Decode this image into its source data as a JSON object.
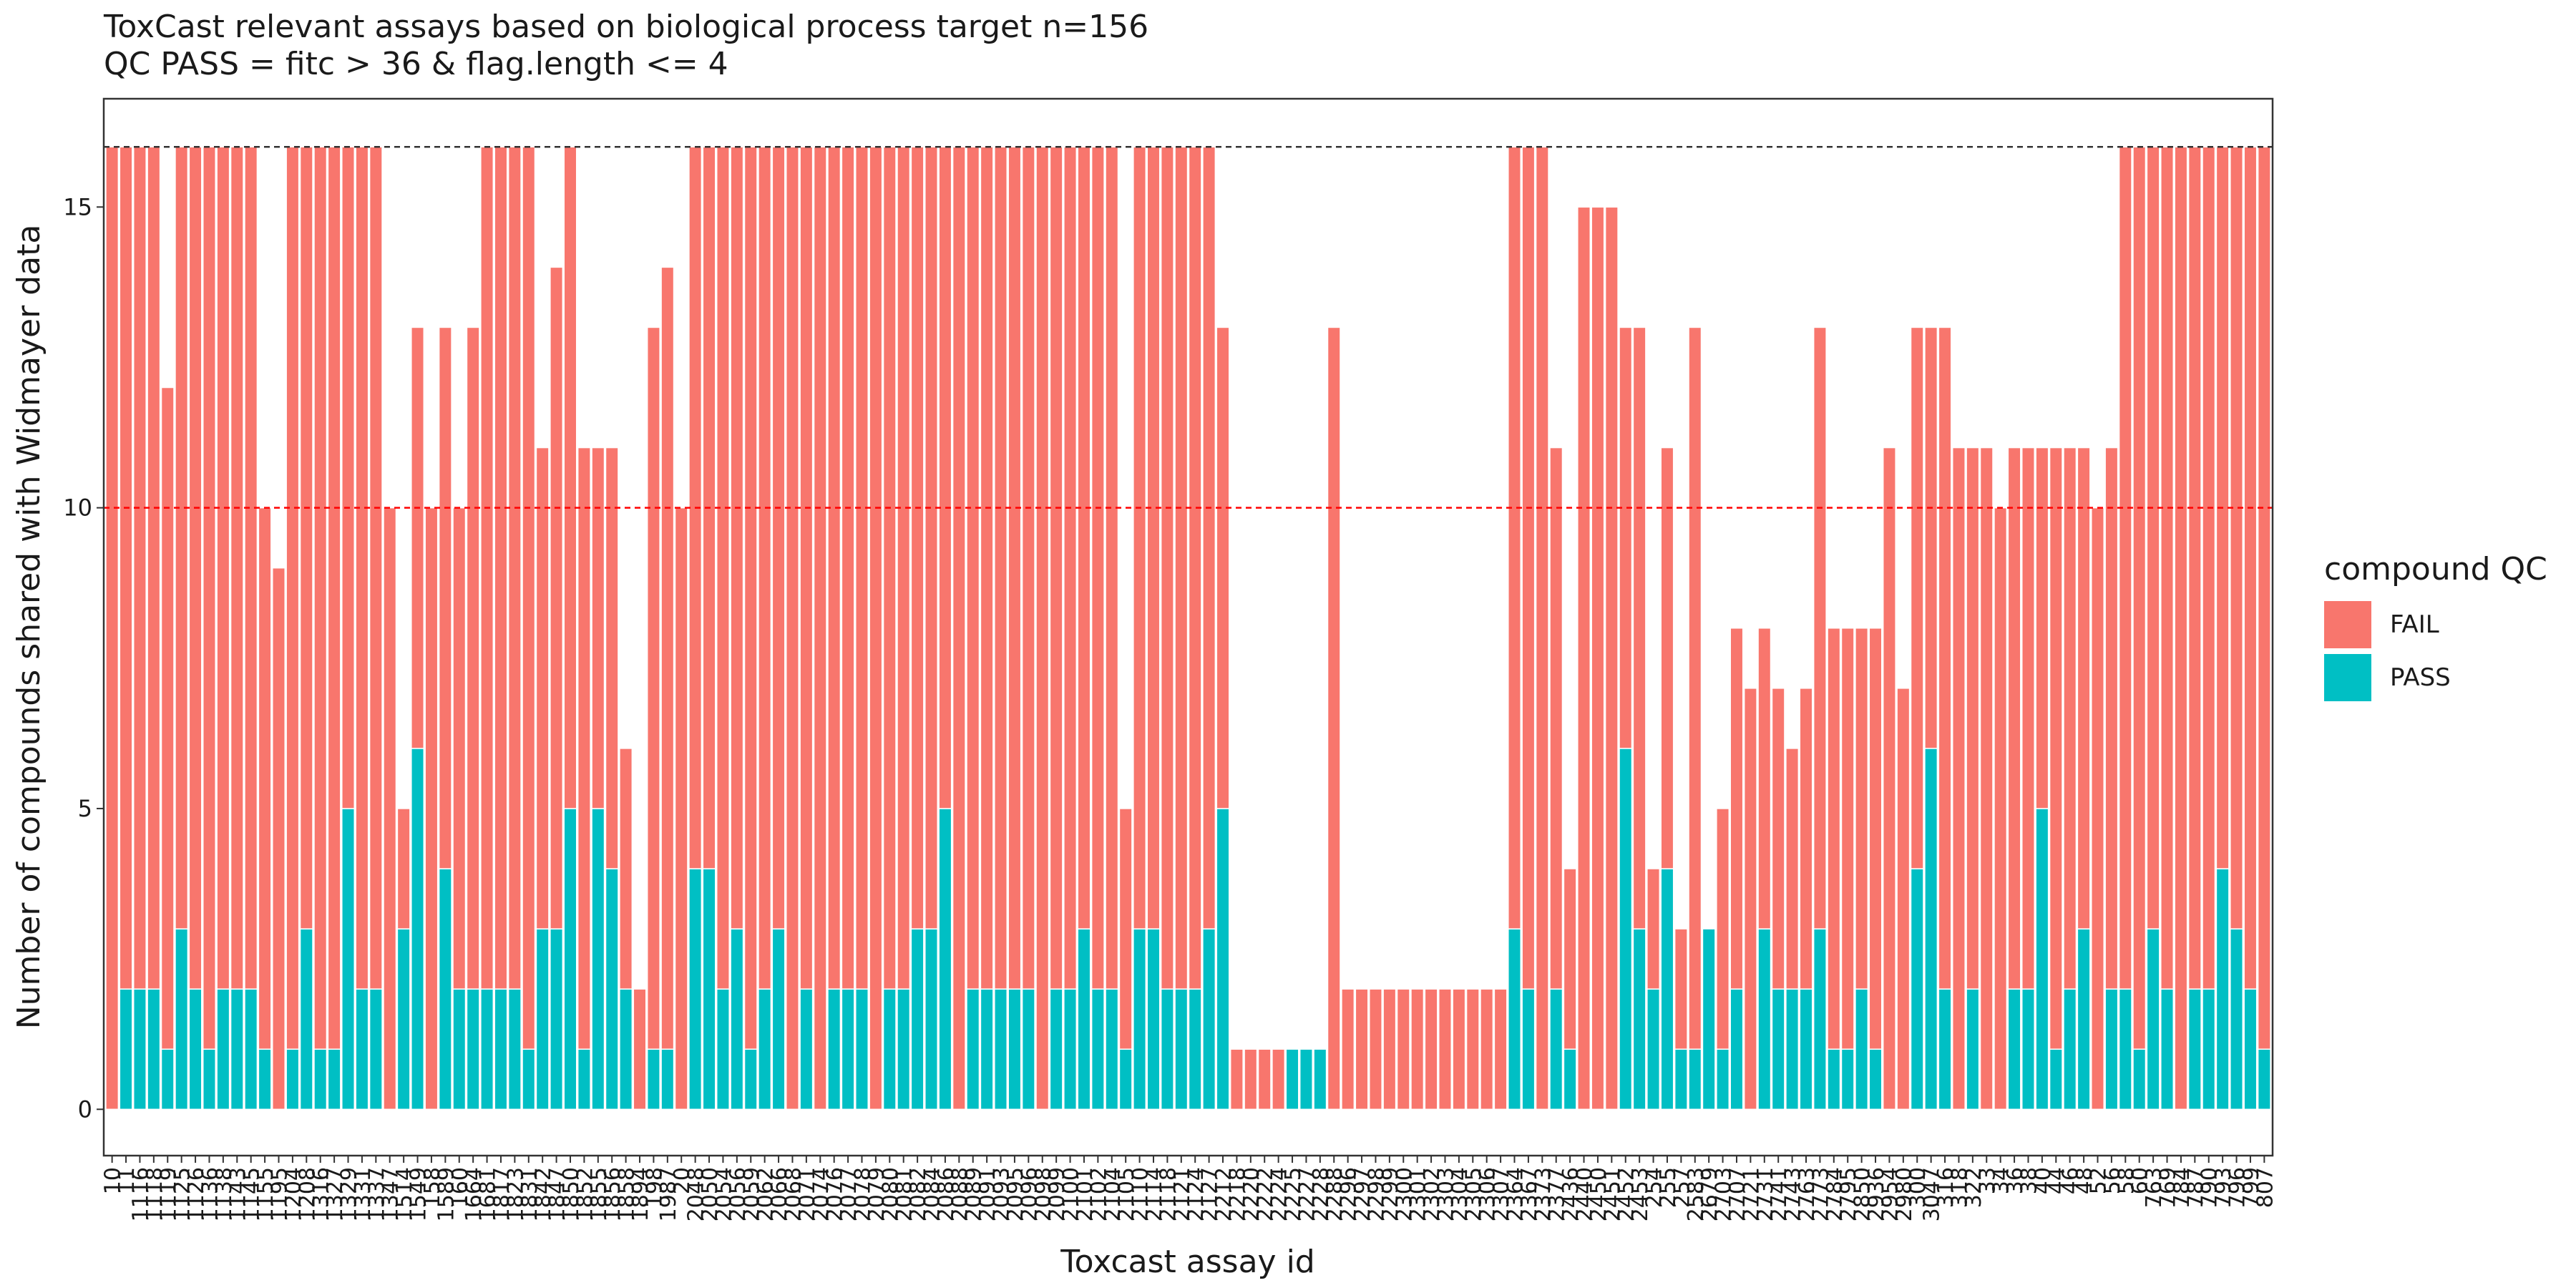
{
  "chart_data": {
    "type": "stacked_bar",
    "title": "ToxCast relevant assays based on biological process target n=156",
    "subtitle": "QC PASS = fitc > 36 & flag.length <= 4",
    "x_label": "Toxcast assay id",
    "y_label": "Number of compounds shared with Widmayer data",
    "legend_title": "compound QC",
    "legend_position": "right",
    "categories": [
      "10",
      "11",
      "1116",
      "1118",
      "1119",
      "1125",
      "1126",
      "1136",
      "1138",
      "1143",
      "1145",
      "1155",
      "1195",
      "1204",
      "1208",
      "1316",
      "1327",
      "1329",
      "1331",
      "1337",
      "1347",
      "1514",
      "1549",
      "158",
      "1589",
      "160",
      "1664",
      "1681",
      "1817",
      "1823",
      "1831",
      "1842",
      "1847",
      "1850",
      "1852",
      "1855",
      "1856",
      "1858",
      "1894",
      "198",
      "1987",
      "20",
      "2048",
      "2050",
      "2054",
      "2056",
      "2059",
      "2062",
      "2066",
      "2068",
      "2071",
      "2074",
      "2076",
      "2077",
      "2078",
      "2079",
      "2080",
      "2081",
      "2082",
      "2084",
      "2086",
      "2088",
      "2089",
      "2091",
      "2093",
      "2095",
      "2096",
      "2098",
      "2099",
      "2100",
      "2101",
      "2102",
      "2104",
      "2105",
      "2110",
      "2114",
      "2118",
      "2121",
      "2124",
      "2127",
      "2212",
      "2218",
      "2220",
      "2222",
      "2224",
      "2225",
      "2227",
      "2228",
      "2288",
      "2296",
      "2297",
      "2298",
      "2299",
      "2300",
      "2301",
      "2302",
      "2303",
      "2304",
      "2305",
      "2306",
      "2307",
      "2364",
      "2367",
      "2373",
      "2377",
      "2436",
      "2440",
      "2450",
      "2451",
      "2452",
      "2453",
      "254",
      "255",
      "257",
      "2583",
      "2679",
      "2703",
      "2707",
      "2721",
      "2731",
      "2741",
      "2743",
      "2763",
      "2773",
      "2784",
      "2795",
      "2850",
      "2936",
      "2954",
      "2980",
      "300",
      "3047",
      "316",
      "318",
      "322",
      "33",
      "34",
      "36",
      "38",
      "40",
      "44",
      "46",
      "48",
      "52",
      "56",
      "58",
      "60",
      "763",
      "769",
      "784",
      "787",
      "790",
      "793",
      "796",
      "799",
      "807"
    ],
    "series": [
      {
        "name": "PASS",
        "color": "#00bfc4",
        "values": [
          0,
          2,
          2,
          2,
          1,
          3,
          2,
          1,
          2,
          2,
          2,
          1,
          0,
          1,
          3,
          1,
          1,
          5,
          2,
          2,
          0,
          3,
          6,
          0,
          4,
          2,
          2,
          2,
          2,
          2,
          1,
          3,
          3,
          5,
          1,
          5,
          4,
          2,
          0,
          1,
          1,
          0,
          4,
          4,
          2,
          3,
          1,
          2,
          3,
          0,
          2,
          0,
          2,
          2,
          2,
          0,
          2,
          2,
          3,
          3,
          5,
          0,
          2,
          2,
          2,
          2,
          2,
          0,
          2,
          2,
          3,
          2,
          2,
          1,
          3,
          3,
          2,
          2,
          2,
          3,
          5,
          0,
          0,
          0,
          0,
          1,
          1,
          1,
          0,
          0,
          0,
          0,
          0,
          0,
          0,
          0,
          0,
          0,
          0,
          0,
          0,
          3,
          2,
          0,
          2,
          1,
          0,
          0,
          0,
          6,
          3,
          2,
          4,
          1,
          1,
          3,
          1,
          2,
          0,
          3,
          2,
          2,
          2,
          3,
          1,
          1,
          2,
          1,
          0,
          0,
          4,
          6,
          2,
          0,
          2,
          0,
          0,
          2,
          2,
          5,
          1,
          2,
          3,
          0,
          2,
          2,
          1,
          3,
          2,
          0,
          2,
          2,
          4,
          3,
          2,
          1
        ]
      },
      {
        "name": "FAIL",
        "color": "#f8766d",
        "values": [
          16,
          14,
          14,
          14,
          11,
          13,
          14,
          15,
          14,
          14,
          14,
          9,
          9,
          15,
          13,
          15,
          15,
          11,
          14,
          14,
          10,
          2,
          7,
          10,
          9,
          8,
          11,
          14,
          14,
          14,
          15,
          8,
          11,
          11,
          10,
          6,
          7,
          4,
          2,
          12,
          13,
          10,
          12,
          12,
          14,
          13,
          15,
          14,
          13,
          16,
          14,
          16,
          14,
          14,
          14,
          16,
          14,
          14,
          13,
          13,
          11,
          16,
          14,
          14,
          14,
          14,
          14,
          16,
          14,
          14,
          13,
          14,
          14,
          4,
          13,
          13,
          14,
          14,
          14,
          13,
          8,
          1,
          1,
          1,
          1,
          0,
          0,
          0,
          13,
          2,
          2,
          2,
          2,
          2,
          2,
          2,
          2,
          2,
          2,
          2,
          2,
          13,
          14,
          16,
          9,
          3,
          15,
          15,
          15,
          7,
          10,
          2,
          7,
          2,
          12,
          0,
          4,
          6,
          7,
          5,
          5,
          4,
          5,
          10,
          7,
          7,
          6,
          7,
          11,
          7,
          9,
          7,
          11,
          11,
          9,
          11,
          10,
          9,
          9,
          6,
          10,
          9,
          8,
          10,
          9,
          14,
          15,
          13,
          14,
          16,
          14,
          14,
          12,
          13,
          14,
          15
        ]
      }
    ],
    "legend_order": [
      1,
      0
    ],
    "reference_lines": [
      {
        "value": 16,
        "color": "#333333"
      },
      {
        "value": 10,
        "color": "#ff0000"
      }
    ],
    "ylim": [
      -0.77,
      16.8
    ],
    "yticks": [
      0,
      5,
      10,
      15
    ],
    "grid": false
  }
}
